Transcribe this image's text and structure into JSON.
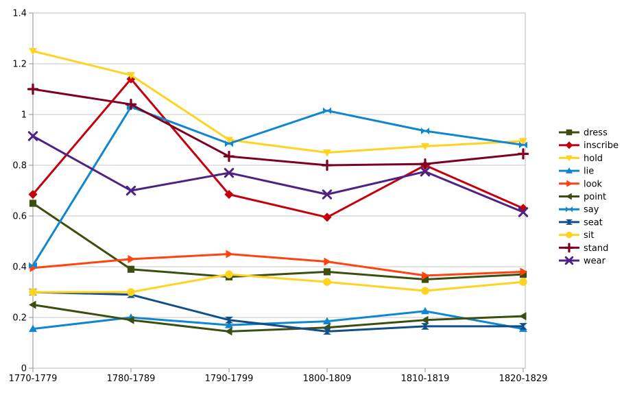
{
  "chart": {
    "background_color": "#ffffff",
    "grid_color": "#c8c8c8",
    "axis_color": "#8f8f8f",
    "border_color": "#b8b8b8",
    "text_color": "#000000"
  },
  "chart_data": {
    "type": "line",
    "title": "",
    "xlabel": "",
    "ylabel": "",
    "grid": "horizontal",
    "legend_position": "right",
    "ylim": [
      0,
      1.4
    ],
    "y_ticks": [
      0,
      0.2,
      0.4,
      0.6,
      0.8,
      1.0,
      1.2,
      1.4
    ],
    "y_tick_labels": [
      "0",
      "0.2",
      "0.4",
      "0.6",
      "0.8",
      "1",
      "1.2",
      "1.4"
    ],
    "categories": [
      "1770-1779",
      "1780-1789",
      "1790-1799",
      "1800-1809",
      "1810-1819",
      "1820-1829"
    ],
    "series": [
      {
        "name": "dress",
        "color": "#3C4E0F",
        "marker": "square",
        "values": [
          0.65,
          0.39,
          0.36,
          0.38,
          0.35,
          0.37
        ]
      },
      {
        "name": "inscribe",
        "color": "#C5000B",
        "marker": "diamond",
        "values": [
          0.685,
          1.14,
          0.685,
          0.595,
          0.8,
          0.63
        ]
      },
      {
        "name": "hold",
        "color": "#FFD320",
        "marker": "triangle-down",
        "values": [
          1.25,
          1.155,
          0.9,
          0.85,
          0.875,
          0.895
        ]
      },
      {
        "name": "lie",
        "color": "#0E86D0",
        "marker": "triangle-up",
        "values": [
          0.155,
          0.2,
          0.17,
          0.185,
          0.225,
          0.155
        ]
      },
      {
        "name": "look",
        "color": "#FF420E",
        "marker": "triangle-right",
        "values": [
          0.395,
          0.43,
          0.45,
          0.42,
          0.365,
          0.38
        ]
      },
      {
        "name": "point",
        "color": "#3C4E0F",
        "marker": "triangle-left",
        "values": [
          0.25,
          0.19,
          0.145,
          0.16,
          0.19,
          0.205
        ]
      },
      {
        "name": "say",
        "color": "#0E86D0",
        "marker": "bowtie",
        "values": [
          0.405,
          1.03,
          0.885,
          1.015,
          0.935,
          0.88
        ]
      },
      {
        "name": "seat",
        "color": "#114E88",
        "marker": "hourglass",
        "values": [
          0.3,
          0.29,
          0.19,
          0.145,
          0.165,
          0.165
        ]
      },
      {
        "name": "sit",
        "color": "#FFD320",
        "marker": "circle",
        "values": [
          0.3,
          0.3,
          0.37,
          0.34,
          0.305,
          0.34
        ]
      },
      {
        "name": "stand",
        "color": "#7E0021",
        "marker": "plus",
        "values": [
          1.1,
          1.04,
          0.835,
          0.8,
          0.805,
          0.845
        ]
      },
      {
        "name": "wear",
        "color": "#4E2183",
        "marker": "x",
        "values": [
          0.915,
          0.7,
          0.77,
          0.685,
          0.775,
          0.615
        ]
      }
    ]
  }
}
